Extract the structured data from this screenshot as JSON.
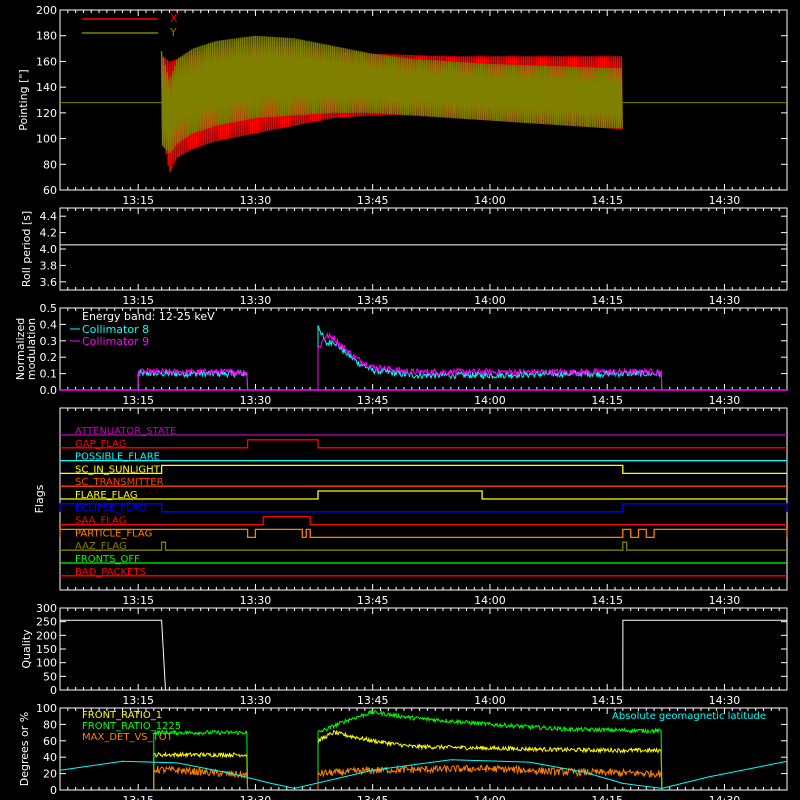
{
  "colors": {
    "background": "#000000",
    "axes": "#ffffff",
    "x": "#ff0000",
    "y": "#808000",
    "cyan": "#00ffff",
    "magenta": "#ff00ff",
    "white": "#ffffff",
    "yellow": "#ffff00",
    "green": "#00ff00",
    "orange": "#ff8000",
    "red": "#ff0000",
    "blue": "#0000ff",
    "olive": "#808000",
    "purple": "#c000c0",
    "orange_red": "#ff4000"
  },
  "time_ticks": [
    "13:15",
    "13:30",
    "13:45",
    "14:00",
    "14:15",
    "14:30"
  ],
  "chart_data": [
    {
      "type": "line",
      "id": "pointing",
      "ylabel": "Pointing [\"]",
      "x_range": [
        "13:05",
        "14:38"
      ],
      "ylim": [
        60,
        200
      ],
      "y_ticks": [
        60,
        80,
        100,
        120,
        140,
        160,
        180,
        200
      ],
      "legend_position": "top-left",
      "series": [
        {
          "name": "X",
          "color": "#ff0000",
          "envelope": {
            "t": [
              "13:18",
              "13:19",
              "13:20",
              "13:22",
              "13:25",
              "13:30",
              "13:35",
              "13:40",
              "13:45",
              "13:50",
              "13:55",
              "14:00",
              "14:05",
              "14:10",
              "14:15",
              "14:17"
            ],
            "upper": [
              165,
              160,
              162,
              166,
              170,
              172,
              172,
              168,
              166,
              165,
              164,
              164,
              164,
              164,
              164,
              164
            ],
            "lower": [
              110,
              73,
              85,
              92,
              98,
              104,
              110,
              116,
              118,
              118,
              116,
              114,
              112,
              110,
              108,
              107
            ]
          }
        },
        {
          "name": "Y",
          "color": "#808000",
          "constant_before_after": 128,
          "envelope": {
            "t": [
              "13:18",
              "13:19",
              "13:20",
              "13:22",
              "13:25",
              "13:30",
              "13:35",
              "13:40",
              "13:45",
              "13:50",
              "13:55",
              "14:00",
              "14:05",
              "14:10",
              "14:15",
              "14:17"
            ],
            "upper": [
              168,
              145,
              162,
              170,
              176,
              180,
              178,
              172,
              166,
              162,
              160,
              158,
              157,
              156,
              155,
              155
            ],
            "lower": [
              95,
              88,
              96,
              104,
              110,
              116,
              118,
              120,
              120,
              118,
              116,
              114,
              112,
              110,
              108,
              108
            ]
          }
        }
      ]
    },
    {
      "type": "line",
      "id": "roll",
      "ylabel": "Roll period [s]",
      "x_range": [
        "13:05",
        "14:38"
      ],
      "ylim": [
        3.5,
        4.5
      ],
      "y_ticks": [
        3.6,
        3.8,
        4.0,
        4.2,
        4.4
      ],
      "series": [
        {
          "color": "#ffffff",
          "constant": 4.05
        }
      ]
    },
    {
      "type": "line",
      "id": "modulation",
      "ylabel": [
        "Normalized",
        "modulation"
      ],
      "x_range": [
        "13:05",
        "14:38"
      ],
      "ylim": [
        0,
        0.5
      ],
      "y_ticks": [
        0.0,
        0.1,
        0.2,
        0.3,
        0.4,
        0.5
      ],
      "legend_title": "Energy band: 12-25 keV",
      "series": [
        {
          "name": "Collimator 8",
          "color": "#00ffff",
          "segments": [
            {
              "t": [
                "13:15",
                "13:29"
              ],
              "level": 0.1
            },
            {
              "t": [
                "13:38",
                "13:39",
                "13:40",
                "13:41",
                "13:43",
                "13:45",
                "13:50",
                "14:00",
                "14:10",
                "14:22"
              ],
              "level": [
                0.4,
                0.28,
                0.3,
                0.25,
                0.17,
                0.12,
                0.09,
                0.09,
                0.1,
                0.1
              ]
            }
          ]
        },
        {
          "name": "Collimator 9",
          "color": "#ff00ff",
          "segments": [
            {
              "t": [
                "13:15",
                "13:29"
              ],
              "level": 0.11
            },
            {
              "t": [
                "13:38",
                "13:39",
                "13:40",
                "13:41",
                "13:43",
                "13:45",
                "13:50",
                "14:00",
                "14:10",
                "14:22"
              ],
              "level": [
                0.25,
                0.33,
                0.32,
                0.27,
                0.19,
                0.14,
                0.11,
                0.11,
                0.11,
                0.11
              ]
            }
          ]
        }
      ]
    },
    {
      "type": "line",
      "id": "flags",
      "ylabel": "Flags",
      "x_range": [
        "13:05",
        "14:38"
      ],
      "series": [
        {
          "name": "ATTENUATOR_STATE",
          "color": "#c000c0",
          "steps": []
        },
        {
          "name": "GAP_FLAG",
          "color": "#ff0000",
          "steps": [
            [
              "13:29",
              "13:38"
            ]
          ]
        },
        {
          "name": "POSSIBLE_FLARE",
          "color": "#00ffff",
          "steps": []
        },
        {
          "name": "SC_IN_SUNLIGHT",
          "color": "#ffff00",
          "steps": [
            [
              "13:18",
              "14:17"
            ]
          ]
        },
        {
          "name": "SC_TRANSMITTER",
          "color": "#ff4000",
          "steps": []
        },
        {
          "name": "FLARE_FLAG",
          "color": "#ffff00",
          "steps": [
            [
              "13:38",
              "13:59"
            ]
          ]
        },
        {
          "name": "ECLIPSE_FLAG",
          "color": "#0000ff",
          "steps": [
            [
              "13:05",
              "13:18"
            ],
            [
              "14:17",
              "14:38"
            ]
          ]
        },
        {
          "name": "SAA_FLAG",
          "color": "#ff0000",
          "steps": [
            [
              "13:31",
              "13:37"
            ]
          ]
        },
        {
          "name": "PARTICLE_FLAG",
          "color": "#ff8000",
          "steps": [
            [
              "13:05",
              "13:29"
            ],
            [
              "13:30",
              "13:36"
            ],
            [
              "13:36.5",
              "13:37"
            ],
            [
              "14:17",
              "14:18"
            ],
            [
              "14:19",
              "14:20"
            ],
            [
              "14:21",
              "14:38"
            ]
          ]
        },
        {
          "name": "AAZ_FLAG",
          "color": "#808000",
          "steps": [
            [
              "13:18",
              "13:18.5"
            ],
            [
              "14:17",
              "14:17.5"
            ]
          ]
        },
        {
          "name": "FRONTS_OFF",
          "color": "#00ff00",
          "steps": []
        },
        {
          "name": "BAD_PACKETS",
          "color": "#ff0000",
          "steps": []
        }
      ]
    },
    {
      "type": "line",
      "id": "quality",
      "ylabel": "Quality",
      "x_range": [
        "13:05",
        "14:38"
      ],
      "ylim": [
        0,
        300
      ],
      "y_ticks": [
        0,
        50,
        100,
        150,
        200,
        250,
        300
      ],
      "series": [
        {
          "color": "#ffffff",
          "t": [
            "13:05",
            "13:18",
            "13:18.5",
            "14:17",
            "14:17.01",
            "14:38"
          ],
          "y": [
            255,
            255,
            0,
            0,
            255,
            255
          ]
        }
      ]
    },
    {
      "type": "line",
      "id": "ratios",
      "ylabel": "Degrees or %",
      "x_range": [
        "13:05",
        "14:38"
      ],
      "ylim": [
        0,
        100
      ],
      "y_ticks": [
        0,
        20,
        40,
        60,
        80,
        100
      ],
      "annotation": "Absolute geomagnetic latitude",
      "series": [
        {
          "name": "FRONT_RATIO_1",
          "color": "#ffff00",
          "segments": [
            {
              "t": [
                "13:17",
                "13:29"
              ],
              "level": 43
            },
            {
              "t": [
                "13:38",
                "13:40",
                "13:45",
                "13:50",
                "14:00",
                "14:10",
                "14:22"
              ],
              "level": [
                60,
                70,
                60,
                53,
                51,
                49,
                48
              ]
            }
          ]
        },
        {
          "name": "FRONT_RATIO_1225",
          "color": "#00ff00",
          "segments": [
            {
              "t": [
                "13:17",
                "13:29"
              ],
              "level": 70
            },
            {
              "t": [
                "13:38",
                "13:42",
                "13:45",
                "13:50",
                "14:00",
                "14:10",
                "14:22"
              ],
              "level": [
                70,
                86,
                95,
                88,
                80,
                74,
                72
              ]
            }
          ]
        },
        {
          "name": "MAX_DET_VS_TOT",
          "color": "#ff8000",
          "segments": [
            {
              "t": [
                "13:17",
                "13:20",
                "13:29"
              ],
              "level": [
                25,
                24,
                18
              ]
            },
            {
              "t": [
                "13:38",
                "13:45",
                "13:50",
                "14:00",
                "14:10",
                "14:22"
              ],
              "level": [
                20,
                24,
                25,
                26,
                22,
                20
              ]
            }
          ]
        },
        {
          "name": "Absolute geomagnetic latitude",
          "color": "#00ffff",
          "t": [
            "13:05",
            "13:13",
            "13:20",
            "13:27",
            "13:32",
            "13:35",
            "13:45",
            "13:55",
            "14:05",
            "14:12",
            "14:17",
            "14:22",
            "14:28",
            "14:38"
          ],
          "y": [
            24,
            35,
            33,
            20,
            8,
            2,
            24,
            37,
            34,
            22,
            8,
            2,
            16,
            35
          ]
        }
      ]
    }
  ]
}
